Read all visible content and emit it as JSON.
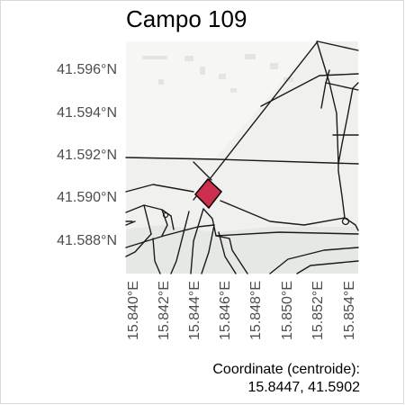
{
  "title": "Campo 109",
  "axes": {
    "y_ticks": [
      "41.596°N",
      "41.594°N",
      "41.592°N",
      "41.590°N",
      "41.588°N"
    ],
    "x_ticks": [
      "15.840°E",
      "15.842°E",
      "15.844°E",
      "15.846°E",
      "15.848°E",
      "15.850°E",
      "15.852°E",
      "15.854°E"
    ]
  },
  "parcel": {
    "fill": "#cc2f4f",
    "stroke": "#000000"
  },
  "colors": {
    "basemap": "#f0f0ee",
    "road": "#1a1a1a",
    "urban_shade": "#e6e8e3",
    "axis_text": "#4d4d4d"
  },
  "footer": {
    "label": "Coordinate (centroide):",
    "value": "15.8447, 41.5902"
  }
}
